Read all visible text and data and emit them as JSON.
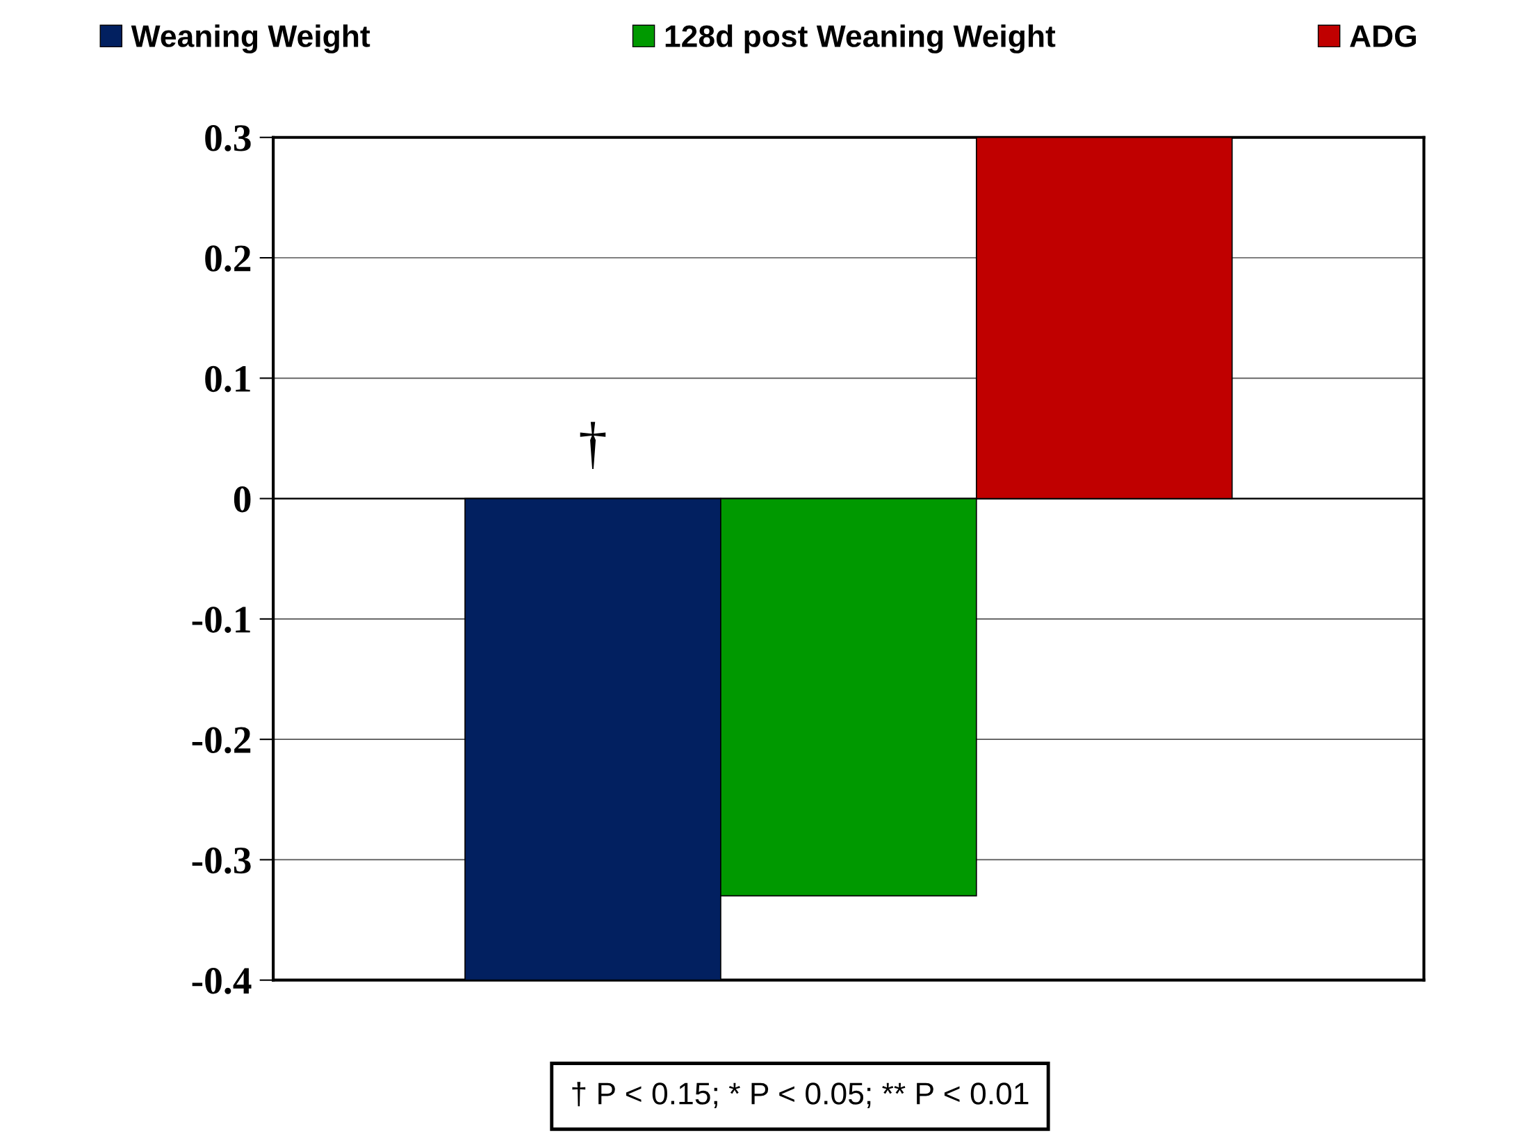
{
  "chart_data": {
    "type": "bar",
    "categories": [
      null
    ],
    "series": [
      {
        "name": "Weaning Weight",
        "color": "#022060",
        "values": [
          -0.4
        ]
      },
      {
        "name": "128d post Weaning Weight",
        "color": "#009900",
        "values": [
          -0.33
        ]
      },
      {
        "name": "ADG",
        "color": "#c00000",
        "values": [
          0.3
        ]
      }
    ],
    "ylim": [
      -0.4,
      0.3
    ],
    "yticks": [
      -0.4,
      -0.3,
      -0.2,
      -0.1,
      0,
      0.1,
      0.2,
      0.3
    ],
    "grid": "y",
    "legend": "top",
    "annotations": [
      "†",
      "† P < 0.15; * P < 0.05; ** P < 0.01"
    ]
  }
}
